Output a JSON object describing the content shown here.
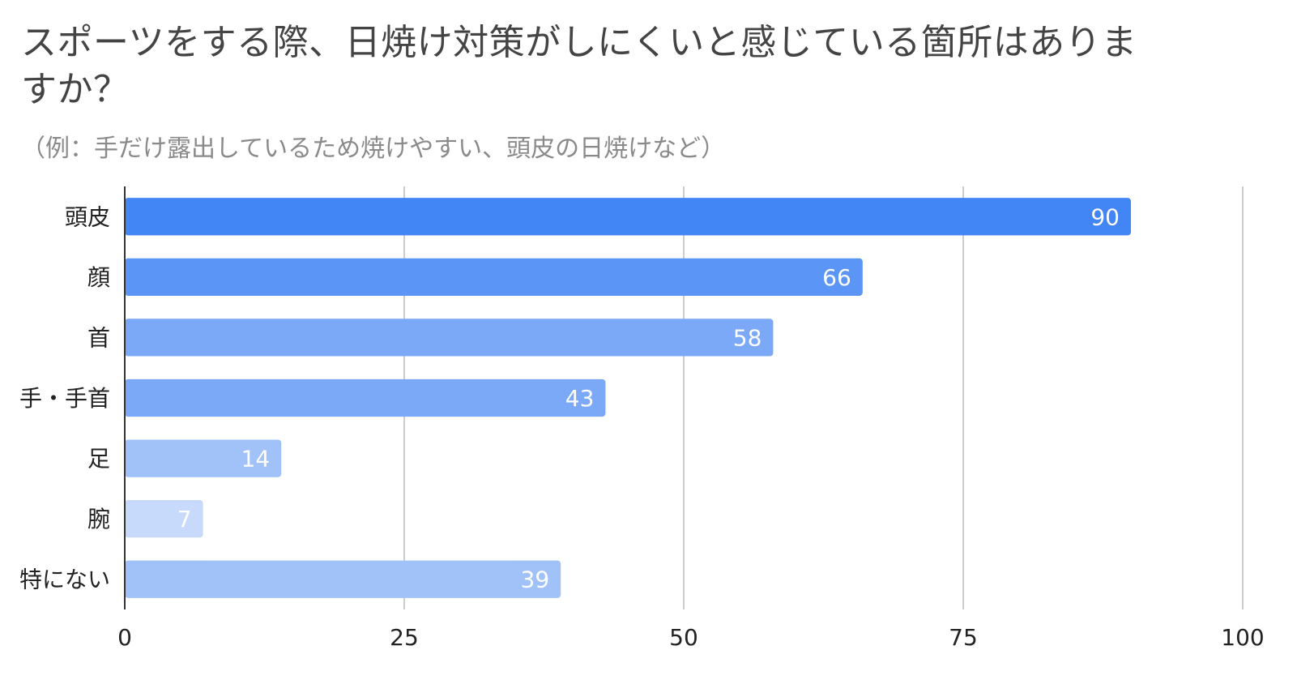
{
  "title": "スポーツをする際、日焼け対策がしにくいと感じている箇所はありますか？",
  "subtitle": "（例：手だけ露出しているため焼けやすい、頭皮の日焼けなど）",
  "chart_data": {
    "type": "bar",
    "orientation": "horizontal",
    "categories": [
      "頭皮",
      "顔",
      "首",
      "手・手首",
      "足",
      "腕",
      "特にない"
    ],
    "values": [
      90,
      66,
      58,
      43,
      14,
      7,
      39
    ],
    "xlim": [
      0,
      100
    ],
    "xticks": [
      0,
      25,
      50,
      75,
      100
    ],
    "grid": true,
    "data_labels": true,
    "bar_colors": [
      "#4285f4",
      "#5b95f6",
      "#7ba9f7",
      "#7ba9f7",
      "#a0c2f9",
      "#c7dafc",
      "#a0c2f9"
    ],
    "grid_color": "#cccccc",
    "axis_color": "#333333"
  }
}
